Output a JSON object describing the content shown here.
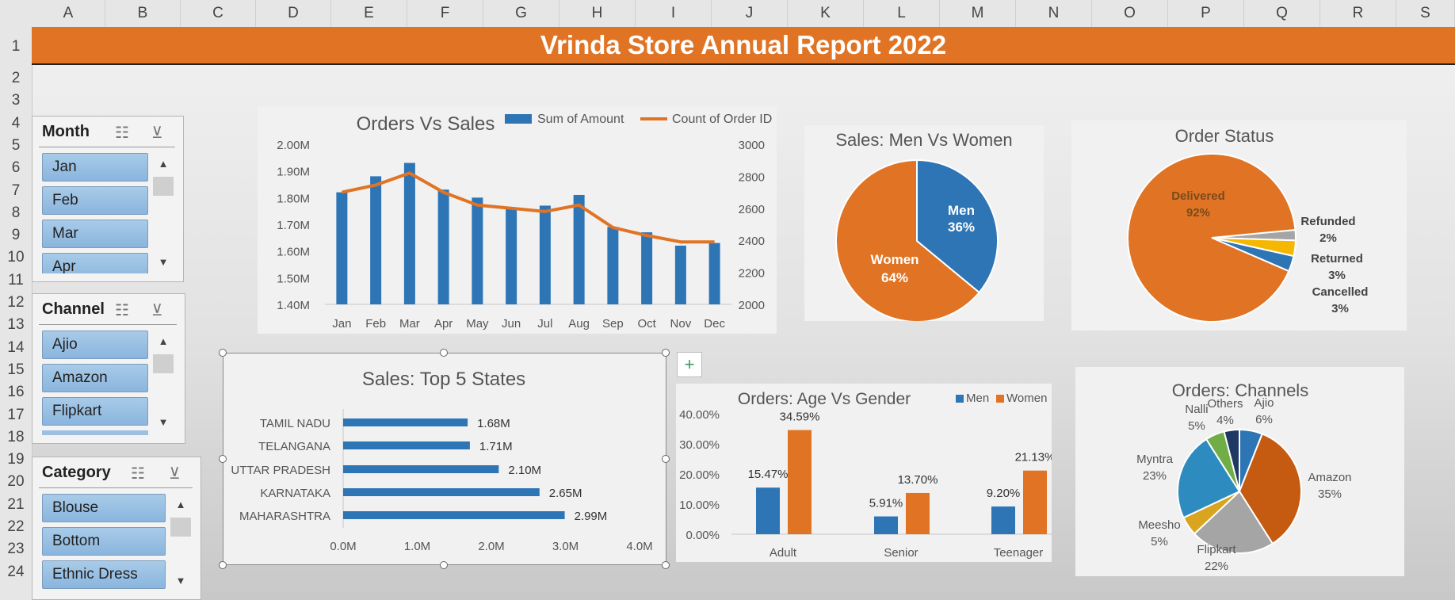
{
  "columns": [
    "A",
    "B",
    "C",
    "D",
    "E",
    "F",
    "G",
    "H",
    "I",
    "J",
    "K",
    "L",
    "M",
    "N",
    "O",
    "P",
    "Q",
    "R",
    "S"
  ],
  "rows": [
    "1",
    "2",
    "3",
    "4",
    "5",
    "6",
    "7",
    "8",
    "9",
    "10",
    "11",
    "12",
    "13",
    "14",
    "15",
    "16",
    "17",
    "18",
    "19",
    "20",
    "21",
    "22",
    "23",
    "24"
  ],
  "title": "Vrinda Store Annual Report 2022",
  "slicers": {
    "month": {
      "header": "Month",
      "items": [
        "Jan",
        "Feb",
        "Mar",
        "Apr"
      ]
    },
    "channel": {
      "header": "Channel",
      "items": [
        "Ajio",
        "Amazon",
        "Flipkart"
      ]
    },
    "category": {
      "header": "Category",
      "items": [
        "Blouse",
        "Bottom",
        "Ethnic Dress"
      ]
    }
  },
  "icons": {
    "multi_select": "multi-select-icon",
    "clear_filter": "clear-filter-icon",
    "add": "plus-icon",
    "style": "brush-icon"
  },
  "colors": {
    "blue": "#2e75b6",
    "orange": "#e07424",
    "gray": "#a5a5a5",
    "yellow": "#f5b700",
    "navy": "#1f3864",
    "green": "#70ad47",
    "lightblue": "#5b9bd5"
  },
  "chart_data": [
    {
      "type": "bar+line",
      "title": "Orders Vs Sales",
      "categories": [
        "Jan",
        "Feb",
        "Mar",
        "Apr",
        "May",
        "Jun",
        "Jul",
        "Aug",
        "Sep",
        "Oct",
        "Nov",
        "Dec"
      ],
      "series": [
        {
          "name": "Sum of Amount",
          "type": "bar",
          "axis": "left",
          "values": [
            1.82,
            1.88,
            1.93,
            1.83,
            1.8,
            1.76,
            1.77,
            1.81,
            1.69,
            1.67,
            1.62,
            1.63
          ]
        },
        {
          "name": "Count of Order ID",
          "type": "line",
          "axis": "right",
          "values": [
            2700,
            2745,
            2820,
            2700,
            2620,
            2600,
            2580,
            2620,
            2480,
            2430,
            2390,
            2390
          ]
        }
      ],
      "left_axis": {
        "ticks": [
          "2.00M",
          "1.90M",
          "1.80M",
          "1.70M",
          "1.60M",
          "1.50M",
          "1.40M"
        ],
        "ylim": [
          1.4,
          2.0
        ]
      },
      "right_axis": {
        "ticks": [
          "3000",
          "2800",
          "2600",
          "2400",
          "2200",
          "2000"
        ],
        "ylim": [
          2000,
          3000
        ]
      }
    },
    {
      "type": "pie",
      "title": "Sales: Men Vs Women",
      "slices": [
        {
          "label": "Men",
          "pct": "36%",
          "value": 36
        },
        {
          "label": "Women",
          "pct": "64%",
          "value": 64
        }
      ]
    },
    {
      "type": "pie",
      "title": "Order Status",
      "slices": [
        {
          "label": "Delivered",
          "pct": "92%",
          "value": 92
        },
        {
          "label": "Refunded",
          "pct": "2%",
          "value": 2
        },
        {
          "label": "Returned",
          "pct": "3%",
          "value": 3
        },
        {
          "label": "Cancelled",
          "pct": "3%",
          "value": 3
        }
      ]
    },
    {
      "type": "bar",
      "orientation": "horizontal",
      "title": "Sales: Top 5 States",
      "categories": [
        "TAMIL NADU",
        "TELANGANA",
        "UTTAR PRADESH",
        "KARNATAKA",
        "MAHARASHTRA"
      ],
      "values": [
        1.68,
        1.71,
        2.1,
        2.65,
        2.99
      ],
      "labels": [
        "1.68M",
        "1.71M",
        "2.10M",
        "2.65M",
        "2.99M"
      ],
      "xticks": [
        "0.0M",
        "1.0M",
        "2.0M",
        "3.0M",
        "4.0M"
      ],
      "xlim": [
        0,
        4
      ]
    },
    {
      "type": "bar",
      "title": "Orders: Age Vs Gender",
      "categories": [
        "Adult",
        "Senior",
        "Teenager"
      ],
      "series": [
        {
          "name": "Men",
          "values": [
            15.47,
            5.91,
            9.2
          ],
          "labels": [
            "15.47%",
            "5.91%",
            "9.20%"
          ]
        },
        {
          "name": "Women",
          "values": [
            34.59,
            13.7,
            21.13
          ],
          "labels": [
            "34.59%",
            "13.70%",
            "21.13%"
          ]
        }
      ],
      "yticks": [
        "40.00%",
        "30.00%",
        "20.00%",
        "10.00%",
        "0.00%"
      ],
      "ylim": [
        0,
        40
      ]
    },
    {
      "type": "pie",
      "title": "Orders: Channels",
      "slices": [
        {
          "label": "Ajio",
          "pct": "6%",
          "value": 6
        },
        {
          "label": "Amazon",
          "pct": "35%",
          "value": 35
        },
        {
          "label": "Flipkart",
          "pct": "22%",
          "value": 22
        },
        {
          "label": "Meesho",
          "pct": "5%",
          "value": 5
        },
        {
          "label": "Myntra",
          "pct": "23%",
          "value": 23
        },
        {
          "label": "Nalli",
          "pct": "5%",
          "value": 5
        },
        {
          "label": "Others",
          "pct": "4%",
          "value": 4
        }
      ]
    }
  ]
}
